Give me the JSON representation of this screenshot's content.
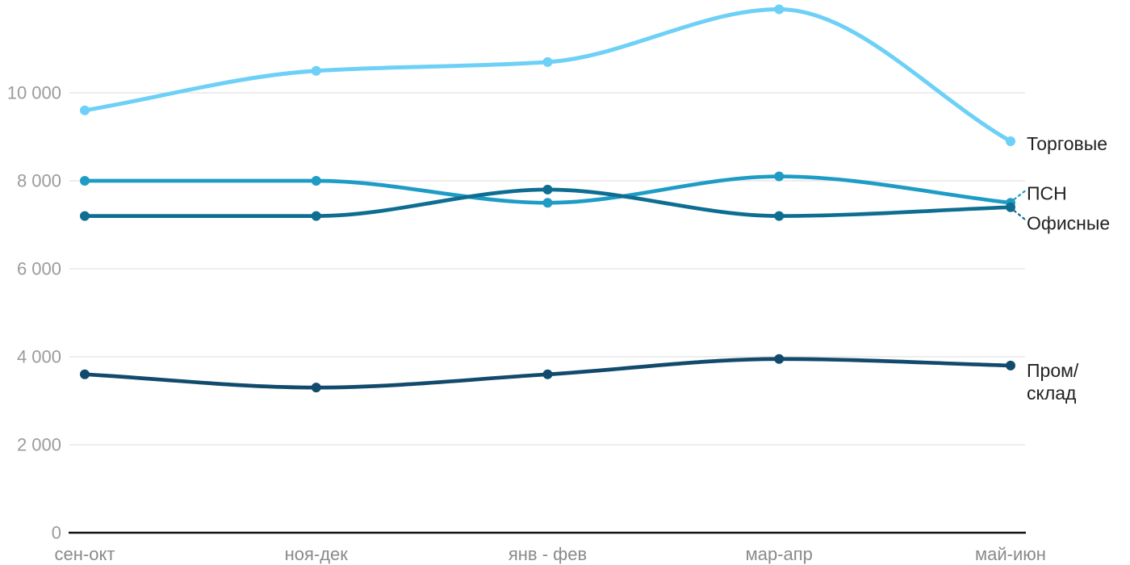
{
  "chart_data": {
    "type": "line",
    "title": "",
    "xlabel": "",
    "ylabel": "",
    "grid": true,
    "legend_position": "right-of-line-ends",
    "categories": [
      "сен-окт",
      "ноя-дек",
      "янв - фев",
      "мар-апр",
      "май-июн"
    ],
    "series": [
      {
        "id": "torgovye",
        "name": "Торговые",
        "color": "#6DD0F6",
        "values": [
          9600,
          10500,
          10700,
          11900,
          8900
        ],
        "label_lines": [
          "Торговые"
        ],
        "has_connector": false
      },
      {
        "id": "psn",
        "name": "ПСН",
        "color": "#1E9CC6",
        "values": [
          8000,
          8000,
          7500,
          8100,
          7500
        ],
        "label_lines": [
          "ПСН"
        ],
        "has_connector": true
      },
      {
        "id": "ofisnye",
        "name": "Офисные",
        "color": "#0E6E91",
        "values": [
          7200,
          7200,
          7800,
          7200,
          7400
        ],
        "label_lines": [
          "Офисные"
        ],
        "has_connector": true
      },
      {
        "id": "prom_sklad",
        "name": "Пром/склад",
        "color": "#124A6D",
        "values": [
          3600,
          3300,
          3600,
          3950,
          3800
        ],
        "label_lines": [
          "Пром/",
          "склад"
        ],
        "has_connector": false
      }
    ],
    "y_ticks": [
      {
        "value": 0,
        "label": "0"
      },
      {
        "value": 2000,
        "label": "2 000"
      },
      {
        "value": 4000,
        "label": "4 000"
      },
      {
        "value": 6000,
        "label": "6 000"
      },
      {
        "value": 8000,
        "label": "8 000"
      },
      {
        "value": 10000,
        "label": "10 000"
      }
    ],
    "ylim": [
      0,
      12100
    ],
    "colors": {
      "background": "#FFFFFF",
      "grid": "#E7E7E7",
      "axis": "#111111",
      "y_tick_text": "#9B9B9B",
      "x_tick_text": "#8A8A8A",
      "series_label_text": "#222222"
    }
  }
}
